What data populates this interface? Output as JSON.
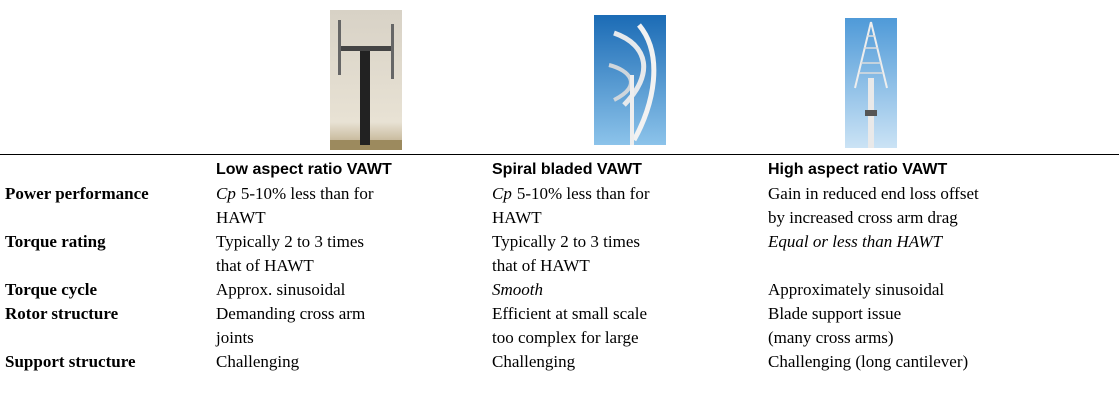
{
  "table": {
    "header": [
      "Low aspect ratio VAWT",
      "Spiral bladed VAWT",
      "High aspect ratio VAWT"
    ],
    "rows": [
      {
        "label": "Power performance",
        "cells": [
          {
            "em": "Cp",
            "lines": [
              "5-10% less than for",
              "HAWT"
            ]
          },
          {
            "em": "Cp",
            "lines": [
              "5-10% less than for",
              "HAWT"
            ]
          },
          {
            "lines": [
              "Gain in reduced end loss offset",
              "by increased cross arm drag"
            ]
          }
        ]
      },
      {
        "label": "Torque rating",
        "cells": [
          {
            "lines": [
              "Typically 2 to 3 times",
              "that of HAWT"
            ]
          },
          {
            "lines": [
              "Typically 2 to 3 times",
              "that of HAWT"
            ]
          },
          {
            "italic": true,
            "lines": [
              "Equal or less than HAWT"
            ]
          }
        ]
      },
      {
        "label": "Torque cycle",
        "cells": [
          {
            "lines": [
              "Approx. sinusoidal"
            ]
          },
          {
            "italic": true,
            "lines": [
              "Smooth"
            ]
          },
          {
            "lines": [
              "Approximately sinusoidal"
            ]
          }
        ]
      },
      {
        "label": "Rotor structure",
        "cells": [
          {
            "lines": [
              "Demanding cross arm",
              "joints"
            ]
          },
          {
            "lines": [
              "Efficient at small scale",
              "too complex for large"
            ]
          },
          {
            "lines": [
              "Blade support issue",
              "(many cross arms)"
            ]
          }
        ]
      },
      {
        "label": "Support structure",
        "cells": [
          {
            "lines": [
              "Challenging"
            ]
          },
          {
            "lines": [
              "Challenging"
            ]
          },
          {
            "lines": [
              "Challenging (long cantilever)"
            ]
          }
        ]
      }
    ]
  }
}
